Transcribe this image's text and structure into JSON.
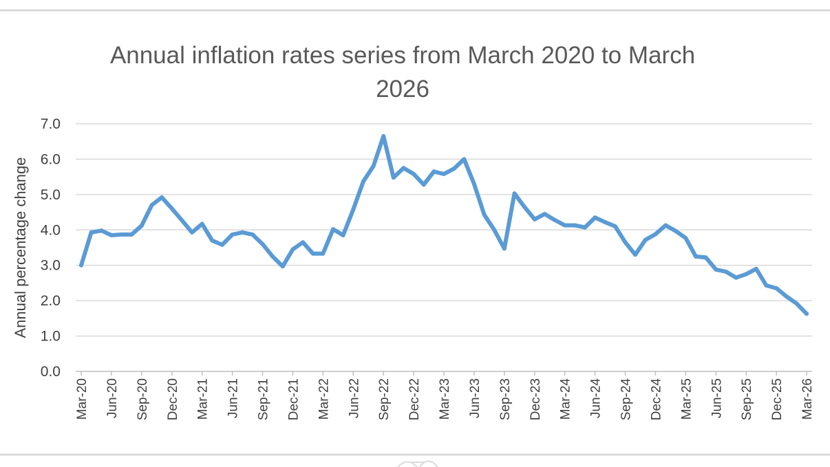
{
  "chart_data": {
    "type": "line",
    "title": "Annual inflation rates series from March 2020 to March 2026",
    "title_lines": [
      "Annual inflation rates series from March 2020 to March",
      "2026"
    ],
    "xlabel": "",
    "ylabel": "Annual percentage change",
    "ylim": [
      0,
      7
    ],
    "yticks": [
      "0.0",
      "1.0",
      "2.0",
      "3.0",
      "4.0",
      "5.0",
      "6.0",
      "7.0"
    ],
    "grid": true,
    "legend": "none",
    "line_color": "#5b9bd5",
    "x_tick_labels": [
      "Mar-20",
      "Jun-20",
      "Sep-20",
      "Dec-20",
      "Mar-21",
      "Jun-21",
      "Sep-21",
      "Dec-21",
      "Mar-22",
      "Jun-22",
      "Sep-22",
      "Dec-22",
      "Mar-23",
      "Jun-23",
      "Sep-23",
      "Dec-23",
      "Mar-24",
      "Jun-24",
      "Sep-24",
      "Dec-24",
      "Mar-25",
      "Jun-25",
      "Sep-25",
      "Dec-25",
      "Mar-26"
    ],
    "series": [
      {
        "values": [
          3.0,
          3.93,
          3.98,
          3.85,
          3.87,
          3.87,
          4.12,
          4.7,
          4.92,
          4.6,
          4.27,
          3.93,
          4.17,
          3.7,
          3.58,
          3.87,
          3.93,
          3.87,
          3.6,
          3.25,
          2.97,
          3.45,
          3.65,
          3.33,
          3.33,
          4.02,
          3.85,
          4.58,
          5.37,
          5.8,
          6.65,
          5.48,
          5.75,
          5.58,
          5.28,
          5.65,
          5.58,
          5.73,
          6.0,
          5.3,
          4.43,
          4.0,
          3.47,
          5.03,
          4.65,
          4.3,
          4.45,
          4.28,
          4.13,
          4.13,
          4.07,
          4.35,
          4.22,
          4.1,
          3.65,
          3.3,
          3.72,
          3.88,
          4.13,
          3.97,
          3.77,
          3.25,
          3.22,
          2.88,
          2.82,
          2.65,
          2.75,
          2.9,
          2.43,
          2.35,
          2.12,
          1.92,
          1.63
        ]
      }
    ]
  },
  "footer": {
    "mark_icon": "crest-watermark-icon"
  }
}
